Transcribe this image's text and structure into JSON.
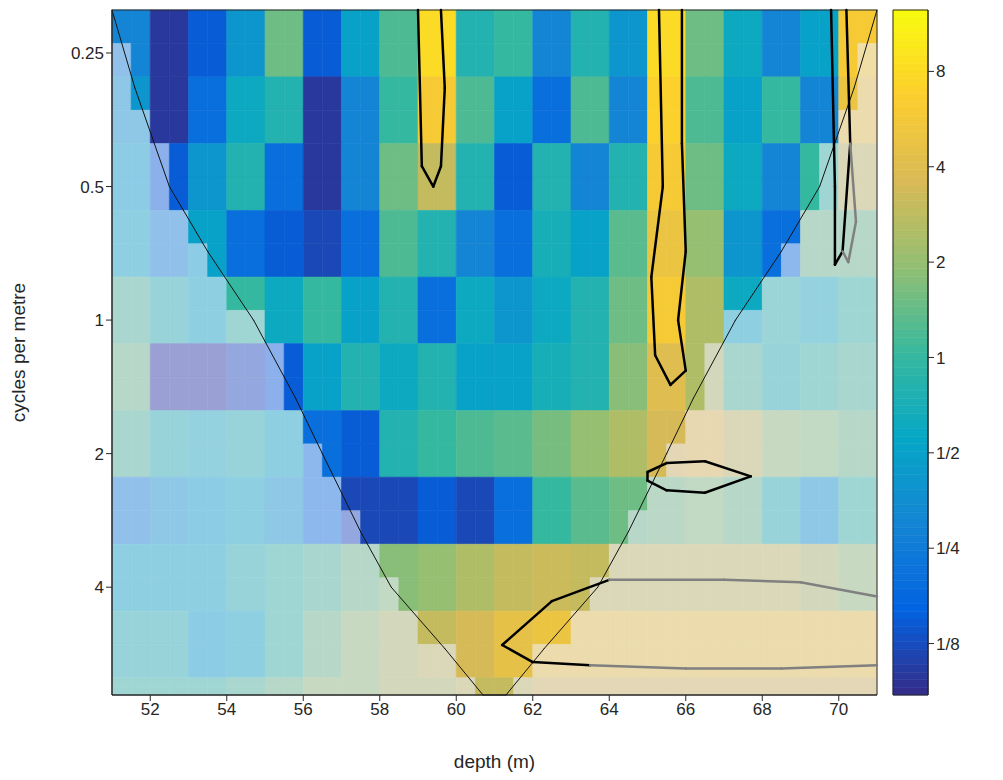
{
  "chart_data": {
    "type": "heatmap",
    "x_label": "depth (m)",
    "y_label": "cycles per metre",
    "log": "y",
    "xlim": [
      51,
      71
    ],
    "xticks": [
      52,
      54,
      56,
      58,
      60,
      62,
      64,
      66,
      68,
      70
    ],
    "ylim": [
      0.2,
      7
    ],
    "yticks": [
      0.25,
      0.5,
      1,
      2,
      4
    ],
    "x_edges": [
      51,
      52,
      53,
      54,
      55,
      56,
      57,
      58,
      59,
      60,
      61,
      62,
      63,
      64,
      65,
      66,
      67,
      68,
      69,
      70,
      71
    ],
    "y_edges": [
      0.2,
      0.283,
      0.4,
      0.566,
      0.8,
      1.13,
      1.6,
      2.26,
      3.2,
      4.53,
      6.4,
      7
    ],
    "cells": [
      [
        0.3,
        0.1,
        0.15,
        0.4,
        1.5,
        0.15,
        0.5,
        1.2,
        8,
        0.8,
        1,
        0.3,
        0.8,
        0.4,
        8,
        1.5,
        0.6,
        0.3,
        0.5,
        6
      ],
      [
        0.4,
        0.1,
        0.2,
        0.6,
        0.8,
        0.1,
        0.3,
        1,
        6,
        1.2,
        0.5,
        0.2,
        1.2,
        0.3,
        7,
        1.2,
        0.5,
        1,
        0.3,
        5
      ],
      [
        0.5,
        0.15,
        0.4,
        0.8,
        0.2,
        0.1,
        0.3,
        1.5,
        3,
        0.8,
        0.15,
        0.8,
        0.3,
        0.8,
        6,
        1.5,
        0.6,
        0.3,
        1,
        3
      ],
      [
        0.6,
        0.3,
        0.5,
        0.2,
        0.15,
        0.12,
        0.2,
        1.2,
        0.8,
        0.3,
        0.2,
        0.7,
        0.5,
        1.3,
        5,
        2,
        0.4,
        0.2,
        1.5,
        1.5
      ],
      [
        1.2,
        0.8,
        0.6,
        1,
        0.6,
        1,
        0.5,
        0.8,
        0.2,
        0.6,
        0.4,
        0.6,
        0.8,
        1.5,
        6,
        2.5,
        0.6,
        0.9,
        0.7,
        1
      ],
      [
        1.5,
        0.1,
        0.1,
        0.12,
        0.15,
        0.5,
        0.8,
        0.6,
        0.8,
        0.5,
        0.5,
        0.7,
        0.8,
        1.8,
        4,
        2.5,
        1.2,
        0.8,
        1,
        1.2
      ],
      [
        1.2,
        0.8,
        0.7,
        0.8,
        0.6,
        0.2,
        0.15,
        0.8,
        1,
        1.2,
        1.3,
        1.6,
        2,
        2.5,
        3.5,
        4,
        3,
        2,
        1.8,
        1.5
      ],
      [
        0.3,
        0.4,
        0.5,
        0.6,
        0.4,
        0.2,
        0.12,
        0.12,
        0.15,
        0.12,
        0.2,
        1,
        1.3,
        1.5,
        1.6,
        1.8,
        1.5,
        0.8,
        0.4,
        1
      ],
      [
        0.6,
        0.6,
        0.6,
        0.8,
        1,
        1.2,
        1.5,
        1.8,
        2,
        2.5,
        3,
        3.2,
        3,
        3,
        3,
        3,
        3,
        3,
        2.5,
        2
      ],
      [
        0.8,
        0.8,
        0.5,
        0.6,
        1,
        1.5,
        2,
        2.5,
        3,
        3.5,
        4.5,
        5,
        5,
        5,
        5,
        5,
        5,
        5,
        5,
        5
      ],
      [
        1,
        1,
        1,
        1.2,
        1.5,
        2,
        2,
        2.5,
        2.5,
        3,
        3,
        3.5,
        3.5,
        3.5,
        3.5,
        3.5,
        3.5,
        3.5,
        3.5,
        3.5
      ]
    ],
    "colorbar": {
      "lim": [
        0.086,
        12.5
      ],
      "ticks": [
        {
          "value": 0.125,
          "label": "1/8"
        },
        {
          "value": 0.25,
          "label": "1/4"
        },
        {
          "value": 0.5,
          "label": "1/2"
        },
        1,
        2,
        4,
        8
      ]
    },
    "cone_of_influence": [
      {
        "x": 51,
        "y": 0.2
      },
      {
        "x": 51.6,
        "y": 0.3
      },
      {
        "x": 52.5,
        "y": 0.5
      },
      {
        "x": 53.5,
        "y": 0.7
      },
      {
        "x": 54.7,
        "y": 1
      },
      {
        "x": 55.8,
        "y": 1.5
      },
      {
        "x": 56.5,
        "y": 2
      },
      {
        "x": 57.5,
        "y": 3
      },
      {
        "x": 58.3,
        "y": 4
      },
      {
        "x": 59.7,
        "y": 5.5
      },
      {
        "x": 60.7,
        "y": 7
      },
      {
        "x": 61.3,
        "y": 7
      },
      {
        "x": 62.3,
        "y": 5.5
      },
      {
        "x": 63.7,
        "y": 4
      },
      {
        "x": 64.5,
        "y": 3
      },
      {
        "x": 65.5,
        "y": 2
      },
      {
        "x": 66.2,
        "y": 1.5
      },
      {
        "x": 67.3,
        "y": 1
      },
      {
        "x": 68.5,
        "y": 0.7
      },
      {
        "x": 69.5,
        "y": 0.5
      },
      {
        "x": 70.4,
        "y": 0.3
      },
      {
        "x": 71,
        "y": 0.2
      }
    ],
    "contours": [
      {
        "color": "#000000",
        "points": [
          {
            "x": 59.0,
            "y": 0.2
          },
          {
            "x": 59.1,
            "y": 0.45
          },
          {
            "x": 59.4,
            "y": 0.5
          },
          {
            "x": 59.6,
            "y": 0.45
          },
          {
            "x": 59.7,
            "y": 0.3
          },
          {
            "x": 59.6,
            "y": 0.2
          }
        ]
      },
      {
        "color": "#000000",
        "points": [
          {
            "x": 65.3,
            "y": 0.2
          },
          {
            "x": 65.4,
            "y": 0.5
          },
          {
            "x": 65.1,
            "y": 0.8
          },
          {
            "x": 65.2,
            "y": 1.2
          },
          {
            "x": 65.6,
            "y": 1.4
          },
          {
            "x": 66.0,
            "y": 1.3
          },
          {
            "x": 65.8,
            "y": 1.0
          },
          {
            "x": 66.0,
            "y": 0.7
          },
          {
            "x": 65.9,
            "y": 0.4
          },
          {
            "x": 65.9,
            "y": 0.2
          }
        ]
      },
      {
        "color": "#000000",
        "points": [
          {
            "x": 69.8,
            "y": 0.2
          },
          {
            "x": 69.9,
            "y": 0.5
          },
          {
            "x": 69.9,
            "y": 0.75
          },
          {
            "x": 70.1,
            "y": 0.7
          },
          {
            "x": 70.3,
            "y": 0.4
          },
          {
            "x": 70.2,
            "y": 0.2
          }
        ]
      },
      {
        "color": "#808080",
        "points": [
          {
            "x": 70.3,
            "y": 0.4
          },
          {
            "x": 70.45,
            "y": 0.6
          },
          {
            "x": 70.25,
            "y": 0.74
          },
          {
            "x": 70.1,
            "y": 0.7
          }
        ]
      },
      {
        "color": "#000000",
        "points": [
          {
            "x": 65.0,
            "y": 2.2
          },
          {
            "x": 65.5,
            "y": 2.1
          },
          {
            "x": 66.5,
            "y": 2.08
          },
          {
            "x": 67.7,
            "y": 2.25
          },
          {
            "x": 66.5,
            "y": 2.45
          },
          {
            "x": 65.5,
            "y": 2.42
          },
          {
            "x": 65.0,
            "y": 2.3
          },
          {
            "x": 65.0,
            "y": 2.2
          }
        ]
      },
      {
        "color": "#000000",
        "points": [
          {
            "x": 64.0,
            "y": 3.85
          },
          {
            "x": 62.5,
            "y": 4.3
          },
          {
            "x": 61.2,
            "y": 5.4
          },
          {
            "x": 62.0,
            "y": 5.9
          },
          {
            "x": 63.5,
            "y": 6.0
          }
        ]
      },
      {
        "color": "#808080",
        "points": [
          {
            "x": 63.5,
            "y": 6.0
          },
          {
            "x": 66.0,
            "y": 6.1
          },
          {
            "x": 68.5,
            "y": 6.1
          },
          {
            "x": 71,
            "y": 6.0
          }
        ]
      },
      {
        "color": "#808080",
        "points": [
          {
            "x": 71,
            "y": 4.2
          },
          {
            "x": 69.0,
            "y": 3.9
          },
          {
            "x": 67.0,
            "y": 3.85
          },
          {
            "x": 64.0,
            "y": 3.85
          }
        ]
      }
    ]
  }
}
